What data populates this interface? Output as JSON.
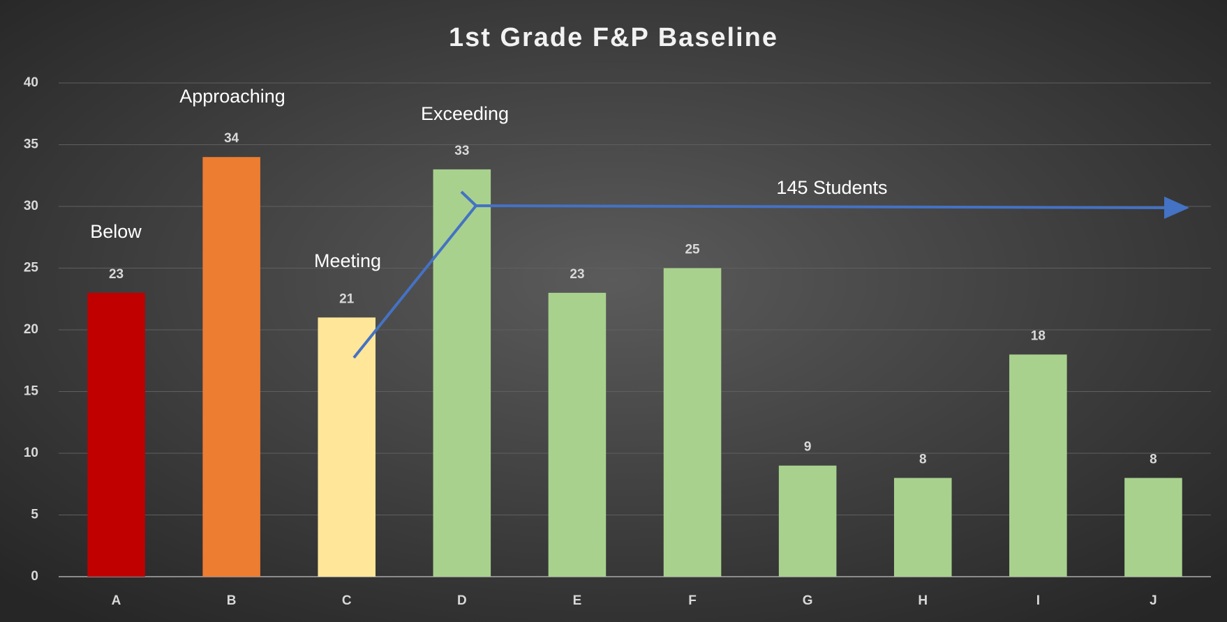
{
  "chart_data": {
    "type": "bar",
    "title": "1st Grade F&P Baseline",
    "categories": [
      "A",
      "B",
      "C",
      "D",
      "E",
      "F",
      "G",
      "H",
      "I",
      "J"
    ],
    "values": [
      23,
      34,
      21,
      33,
      23,
      25,
      9,
      8,
      18,
      8
    ],
    "colors": [
      "#c00000",
      "#ed7d31",
      "#ffe699",
      "#a9d18e",
      "#a9d18e",
      "#a9d18e",
      "#a9d18e",
      "#a9d18e",
      "#a9d18e",
      "#a9d18e"
    ],
    "ylim": [
      0,
      40
    ],
    "yticks": [
      0,
      5,
      10,
      15,
      20,
      25,
      30,
      35,
      40
    ],
    "grid": true,
    "annotations": [
      "Below",
      "Approaching",
      "Meeting",
      "Exceeding",
      "145 Students"
    ]
  }
}
